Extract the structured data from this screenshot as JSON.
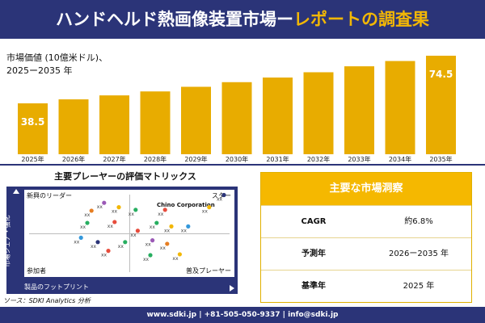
{
  "header": {
    "title_part1": "ハンドヘルド熱画像装置市場ー",
    "title_part2": "レポートの調査果"
  },
  "chart_data": {
    "type": "bar",
    "title": "市場価値 (10億米ドル)、\n2025ー2035 年",
    "categories": [
      "2025年",
      "2026年",
      "2027年",
      "2028年",
      "2029年",
      "2030年",
      "2031年",
      "2032年",
      "2033年",
      "2034年",
      "2035年"
    ],
    "values": [
      38.5,
      41.5,
      44.5,
      47.5,
      51.0,
      54.5,
      58.0,
      62.0,
      66.5,
      70.5,
      74.5
    ],
    "value_labels": {
      "0": "38.5",
      "10": "74.5"
    },
    "ylim": [
      0,
      80
    ],
    "bar_color": "#e8ac00",
    "grid": false,
    "legend": "none"
  },
  "matrix": {
    "title": "主要プレーヤーの評価マトリックス",
    "y_axis_label": "市場シェア・強化",
    "x_axis_label": "製品のフットプリント",
    "quadrants": {
      "top_left": "新興のリーダー",
      "top_right": "スター",
      "bottom_left": "参加者",
      "bottom_right": "普及プレーヤー"
    },
    "highlight_label": "Chino Corporation",
    "placeholder_label": "xx",
    "points": [
      {
        "x": 0.38,
        "y": 0.85,
        "color": "#9b59b6"
      },
      {
        "x": 0.45,
        "y": 0.8,
        "color": "#f2b705"
      },
      {
        "x": 0.53,
        "y": 0.77,
        "color": "#27ae60"
      },
      {
        "x": 0.67,
        "y": 0.77,
        "color": "#e74c3c"
      },
      {
        "x": 0.95,
        "y": 0.94,
        "color": "#2b3478"
      },
      {
        "x": 0.88,
        "y": 0.8,
        "color": "#f2b705"
      },
      {
        "x": 0.32,
        "y": 0.76,
        "color": "#e67e22"
      },
      {
        "x": 0.3,
        "y": 0.62,
        "color": "#27ae60"
      },
      {
        "x": 0.43,
        "y": 0.63,
        "color": "#e74c3c"
      },
      {
        "x": 0.63,
        "y": 0.62,
        "color": "#27ae60"
      },
      {
        "x": 0.7,
        "y": 0.58,
        "color": "#f2b705"
      },
      {
        "x": 0.78,
        "y": 0.58,
        "color": "#3498db"
      },
      {
        "x": 0.54,
        "y": 0.53,
        "color": "#e74c3c"
      },
      {
        "x": 0.27,
        "y": 0.45,
        "color": "#3498db"
      },
      {
        "x": 0.35,
        "y": 0.4,
        "color": "#2b3478"
      },
      {
        "x": 0.48,
        "y": 0.4,
        "color": "#27ae60"
      },
      {
        "x": 0.61,
        "y": 0.42,
        "color": "#9b59b6"
      },
      {
        "x": 0.68,
        "y": 0.38,
        "color": "#e67e22"
      },
      {
        "x": 0.4,
        "y": 0.3,
        "color": "#e74c3c"
      },
      {
        "x": 0.74,
        "y": 0.26,
        "color": "#f2b705"
      },
      {
        "x": 0.6,
        "y": 0.25,
        "color": "#27ae60"
      }
    ]
  },
  "source": "ソース：SDKI Analytics 分析",
  "info_panel": {
    "title": "主要な市場洞察",
    "rows": [
      {
        "label": "CAGR",
        "value": "約6.8%"
      },
      {
        "label": "予測年",
        "value": "2026ー2035 年"
      },
      {
        "label": "基準年",
        "value": "2025 年"
      }
    ]
  },
  "footer": {
    "contact": "www.sdki.jp | +81-505-050-9337 | info@sdki.jp"
  }
}
